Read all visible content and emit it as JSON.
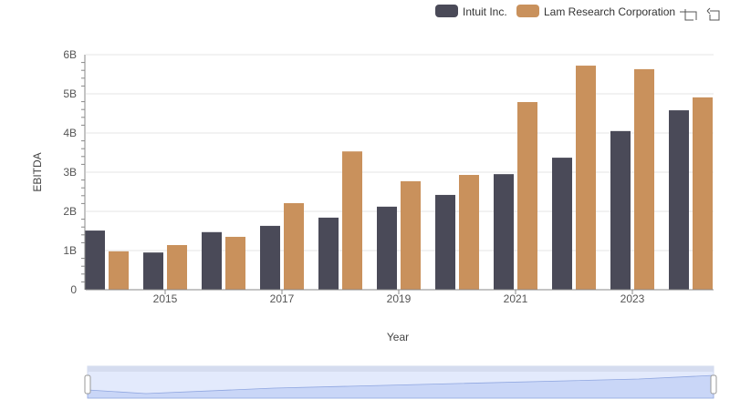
{
  "chart_data": {
    "type": "bar",
    "title": "",
    "xlabel": "Year",
    "ylabel": "EBITDA",
    "categories": [
      "2014",
      "2015",
      "2016",
      "2017",
      "2018",
      "2019",
      "2020",
      "2021",
      "2022",
      "2023",
      "2024"
    ],
    "x_tick_labels": [
      "2015",
      "2017",
      "2019",
      "2021",
      "2023"
    ],
    "y_tick_labels": [
      "0",
      "1B",
      "2B",
      "3B",
      "4B",
      "5B",
      "6B"
    ],
    "ylim": [
      0,
      6
    ],
    "y_unit": "billions",
    "legend_position": "top-right",
    "series": [
      {
        "name": "Intuit Inc.",
        "color": "#4a4a58",
        "values": [
          1.51,
          0.95,
          1.47,
          1.63,
          1.84,
          2.12,
          2.42,
          2.95,
          3.37,
          4.05,
          4.58
        ]
      },
      {
        "name": "Lam Research Corporation",
        "color": "#c9915c",
        "values": [
          0.98,
          1.14,
          1.35,
          2.21,
          3.53,
          2.77,
          2.93,
          4.79,
          5.72,
          5.63,
          4.91
        ]
      }
    ]
  },
  "toolbar": {
    "icons": [
      "zoom-icon",
      "reset-icon"
    ]
  }
}
